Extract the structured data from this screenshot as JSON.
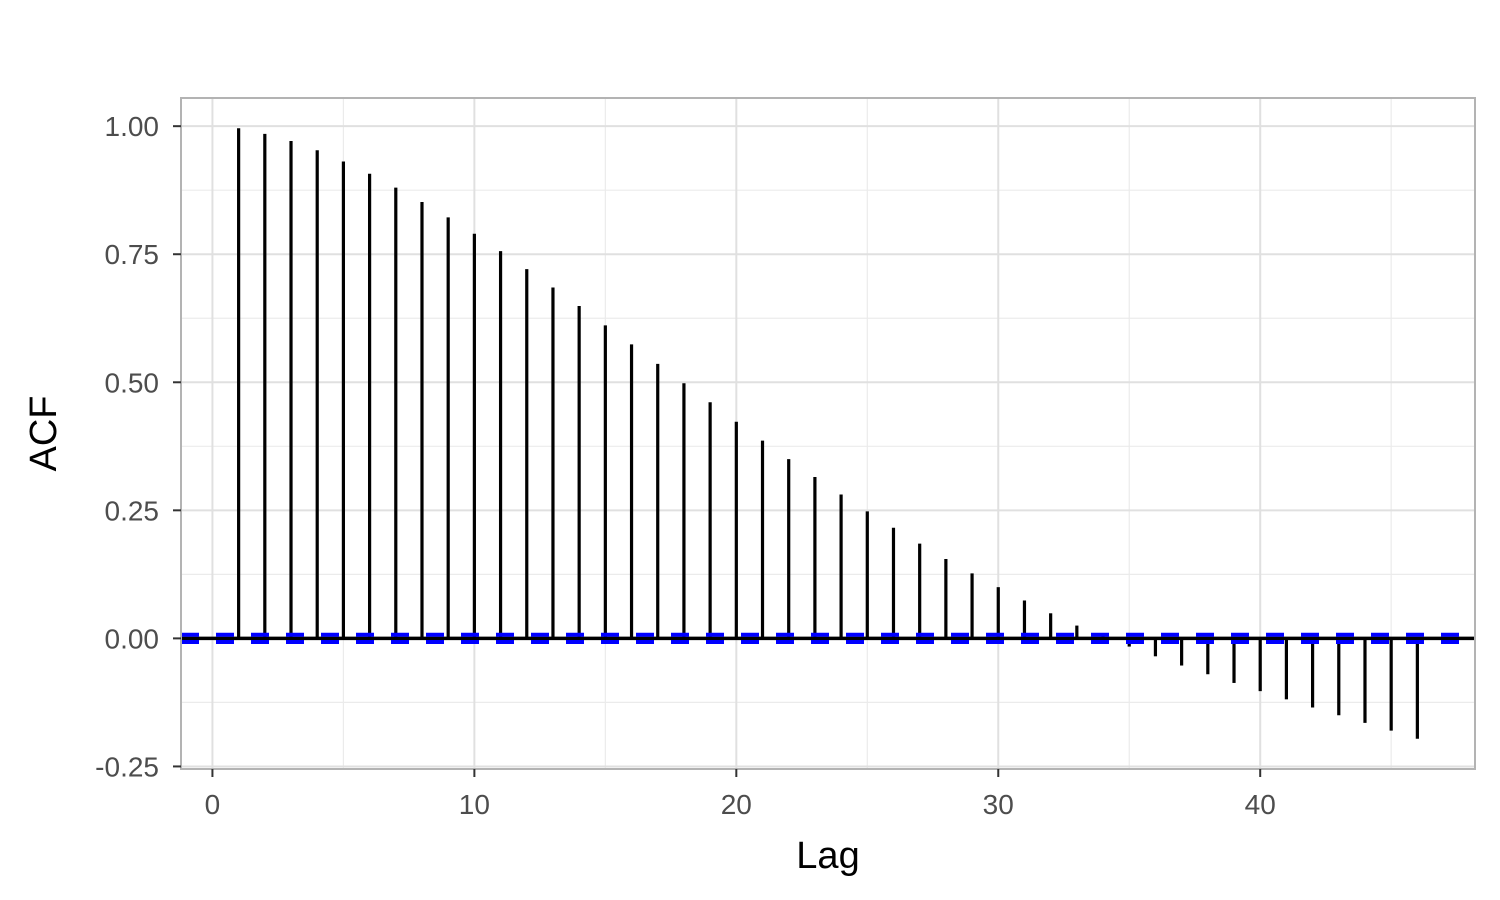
{
  "chart_data": {
    "type": "bar",
    "subtype": "acf",
    "title": "",
    "xlabel": "Lag",
    "ylabel": "ACF",
    "xlim": [
      -1.2,
      48.2
    ],
    "ylim": [
      -0.255,
      1.055
    ],
    "x_ticks": [
      0,
      10,
      20,
      30,
      40
    ],
    "x_tick_labels": [
      "0",
      "10",
      "20",
      "30",
      "40"
    ],
    "y_ticks": [
      -0.25,
      0,
      0.25,
      0.5,
      0.75,
      1
    ],
    "y_tick_labels": [
      "-0.25",
      "0.00",
      "0.25",
      "0.50",
      "0.75",
      "1.00"
    ],
    "grid": true,
    "lags": [
      1,
      2,
      3,
      4,
      5,
      6,
      7,
      8,
      9,
      10,
      11,
      12,
      13,
      14,
      15,
      16,
      17,
      18,
      19,
      20,
      21,
      22,
      23,
      24,
      25,
      26,
      27,
      28,
      29,
      30,
      31,
      32,
      33,
      34,
      35,
      36,
      37,
      38,
      39,
      40,
      41,
      42,
      43,
      44,
      45,
      46
    ],
    "values": [
      0.996,
      0.985,
      0.971,
      0.953,
      0.931,
      0.907,
      0.88,
      0.852,
      0.822,
      0.79,
      0.756,
      0.721,
      0.685,
      0.649,
      0.611,
      0.574,
      0.536,
      0.498,
      0.461,
      0.423,
      0.386,
      0.35,
      0.315,
      0.281,
      0.248,
      0.216,
      0.185,
      0.155,
      0.127,
      0.1,
      0.074,
      0.049,
      0.025,
      0.004,
      -0.016,
      -0.035,
      -0.053,
      -0.07,
      -0.087,
      -0.103,
      -0.119,
      -0.135,
      -0.15,
      -0.165,
      -0.18,
      -0.196
    ],
    "confidence_bound": 0.007,
    "colors": {
      "bars": "#000000",
      "confidence": "#0000ff",
      "zero_line": "#000000",
      "grid": "#ebebeb",
      "panel_border": "#b3b3b3",
      "tick_text": "#4d4d4d"
    }
  }
}
